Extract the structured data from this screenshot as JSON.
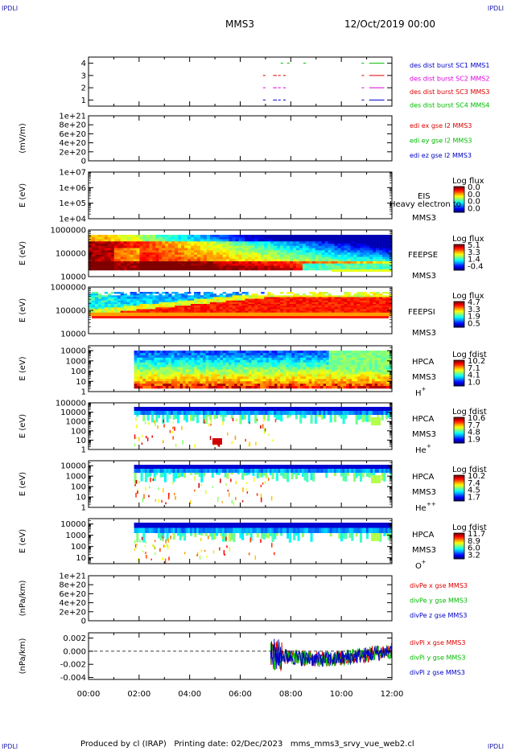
{
  "corner_label": "IPDLI",
  "header": {
    "spacecraft": "MMS3",
    "datetime": "12/Oct/2019 00:00"
  },
  "footer": {
    "producer": "Produced by cl (IRAP)",
    "printing": "Printing date: 02/Dec/2023",
    "script": "mms_mms3_srvy_vue_web2.cl"
  },
  "x_axis": {
    "ticks": [
      "00:00",
      "02:00",
      "04:00",
      "06:00",
      "08:00",
      "10:00",
      "12:00"
    ],
    "range_hours": [
      0,
      12
    ]
  },
  "colors": {
    "blue": "#0000c8",
    "magenta": "#dd00dd",
    "red": "#dd0000",
    "green": "#00bb00",
    "black": "#000000"
  },
  "chart_data": [
    {
      "type": "line",
      "panel": "burst",
      "yticks": [
        "1",
        "2",
        "3",
        "4"
      ],
      "ylim": [
        0.5,
        4.5
      ],
      "series": [
        {
          "name": "des dist burst SC1 MMS1",
          "color": "blue",
          "level": 1,
          "segments": [
            [
              6.9,
              7.0
            ],
            [
              7.3,
              7.45
            ],
            [
              7.5,
              7.6
            ],
            [
              7.7,
              7.8
            ],
            [
              10.8,
              10.9
            ],
            [
              11.1,
              11.7
            ]
          ]
        },
        {
          "name": "des dist burst SC2 MMS2",
          "color": "magenta",
          "level": 2,
          "segments": [
            [
              6.9,
              7.0
            ],
            [
              7.3,
              7.45
            ],
            [
              7.5,
              7.6
            ],
            [
              7.7,
              7.8
            ],
            [
              10.8,
              10.9
            ],
            [
              11.1,
              11.7
            ]
          ]
        },
        {
          "name": "des dist burst SC3 MMS3",
          "color": "red",
          "level": 3,
          "segments": [
            [
              6.9,
              7.0
            ],
            [
              7.3,
              7.45
            ],
            [
              7.5,
              7.6
            ],
            [
              7.7,
              7.8
            ],
            [
              10.8,
              10.9
            ],
            [
              11.1,
              11.7
            ]
          ]
        },
        {
          "name": "des dist burst SC4 MMS4",
          "color": "green",
          "level": 4,
          "segments": [
            [
              7.6,
              7.7
            ],
            [
              7.85,
              7.95
            ],
            [
              8.5,
              8.6
            ],
            [
              10.8,
              10.9
            ],
            [
              11.1,
              11.7
            ]
          ]
        }
      ]
    },
    {
      "type": "line",
      "panel": "edi",
      "ylabel": "(mV/m)",
      "yticks": [
        "0",
        "2e+20",
        "4e+20",
        "6e+20",
        "8e+20",
        "1e+21"
      ],
      "ylim": [
        0,
        1e+21
      ],
      "series": [
        {
          "name": "edi ex gse l2 MMS3",
          "color": "red"
        },
        {
          "name": "edi ey gse l2 MMS3",
          "color": "green"
        },
        {
          "name": "edi ez gse l2 MMS3",
          "color": "blue"
        }
      ]
    },
    {
      "type": "heatmap",
      "panel": "eis",
      "ylabel": "E (eV)",
      "yticks": [
        "1e+04",
        "1e+05",
        "1e+06",
        "1e+07"
      ],
      "ylim": [
        10000.0,
        10000000.0
      ],
      "log": true,
      "instrument": "EIS",
      "spacecraft": "MMS3",
      "extra_label": "Heavy electron to",
      "colorbar": {
        "title": "Log flux",
        "ticks": [
          "0.0",
          "0.0",
          "0.0",
          "0.0"
        ]
      }
    },
    {
      "type": "heatmap",
      "panel": "feepse",
      "ylabel": "E (eV)",
      "yticks": [
        "10000",
        "100000",
        "1000000"
      ],
      "ylim": [
        10000,
        1000000
      ],
      "log": true,
      "instrument": "FEEPSE",
      "spacecraft": "MMS3",
      "colorbar": {
        "title": "Log flux",
        "ticks": [
          "5.1",
          "3.3",
          "1.4",
          "-0.4"
        ]
      }
    },
    {
      "type": "heatmap",
      "panel": "feepsi",
      "ylabel": "E (eV)",
      "yticks": [
        "10000",
        "100000",
        "1000000"
      ],
      "ylim": [
        10000,
        1000000
      ],
      "log": true,
      "instrument": "FEEPSI",
      "spacecraft": "MMS3",
      "colorbar": {
        "title": "Log flux",
        "ticks": [
          "4.7",
          "3.3",
          "1.9",
          "0.5"
        ]
      }
    },
    {
      "type": "heatmap",
      "panel": "hpca_h",
      "ylabel": "E (eV)",
      "yticks": [
        "1",
        "10",
        "100",
        "1000",
        "10000"
      ],
      "ylim": [
        1,
        30000
      ],
      "log": true,
      "instrument": "HPCA",
      "spacecraft": "MMS3",
      "species": "H",
      "charge": "+",
      "colorbar": {
        "title": "Log fdist",
        "ticks": [
          "10.2",
          "7.1",
          "4.1",
          "1.0"
        ]
      }
    },
    {
      "type": "heatmap",
      "panel": "hpca_he",
      "ylabel": "E (eV)",
      "yticks": [
        "1",
        "10",
        "100",
        "1000",
        "10000",
        "100000"
      ],
      "ylim": [
        1,
        100000
      ],
      "log": true,
      "instrument": "HPCA",
      "spacecraft": "MMS3",
      "species": "He",
      "charge": "+",
      "colorbar": {
        "title": "Log fdist",
        "ticks": [
          "10.6",
          "7.7",
          "4.8",
          "1.9"
        ]
      }
    },
    {
      "type": "heatmap",
      "panel": "hpca_hepp",
      "ylabel": "E (eV)",
      "yticks": [
        "1",
        "10",
        "100",
        "1000",
        "10000"
      ],
      "ylim": [
        1,
        30000
      ],
      "log": true,
      "instrument": "HPCA",
      "spacecraft": "MMS3",
      "species": "He",
      "charge": "++",
      "colorbar": {
        "title": "Log fdist",
        "ticks": [
          "10.2",
          "7.4",
          "4.5",
          "1.7"
        ]
      }
    },
    {
      "type": "heatmap",
      "panel": "hpca_o",
      "ylabel": "E (eV)",
      "yticks": [
        "10",
        "100",
        "1000",
        "10000"
      ],
      "ylim": [
        3,
        30000
      ],
      "log": true,
      "instrument": "HPCA",
      "spacecraft": "MMS3",
      "species": "O",
      "charge": "+",
      "colorbar": {
        "title": "Log fdist",
        "ticks": [
          "11.7",
          "8.9",
          "6.0",
          "3.2"
        ]
      }
    },
    {
      "type": "line",
      "panel": "divpe",
      "ylabel": "(nPa/km)",
      "yticks": [
        "0",
        "2e+20",
        "4e+20",
        "6e+20",
        "8e+20",
        "1e+21"
      ],
      "ylim": [
        0,
        1e+21
      ],
      "series": [
        {
          "name": "divPe x gse MMS3",
          "color": "red"
        },
        {
          "name": "divPe y gse MMS3",
          "color": "green"
        },
        {
          "name": "divPe z gse MMS3",
          "color": "blue"
        }
      ]
    },
    {
      "type": "line",
      "panel": "divpi",
      "ylabel": "(nPa/km)",
      "yticks": [
        "-0.004",
        "-0.002",
        "0.000",
        "0.002"
      ],
      "ylim": [
        -0.0043,
        0.0028
      ],
      "series": [
        {
          "name": "divPi x gse MMS3",
          "color": "red",
          "start_hour": 7.2
        },
        {
          "name": "divPi y gse MMS3",
          "color": "green",
          "start_hour": 7.2
        },
        {
          "name": "divPi z gse MMS3",
          "color": "blue",
          "start_hour": 7.2
        }
      ]
    }
  ]
}
